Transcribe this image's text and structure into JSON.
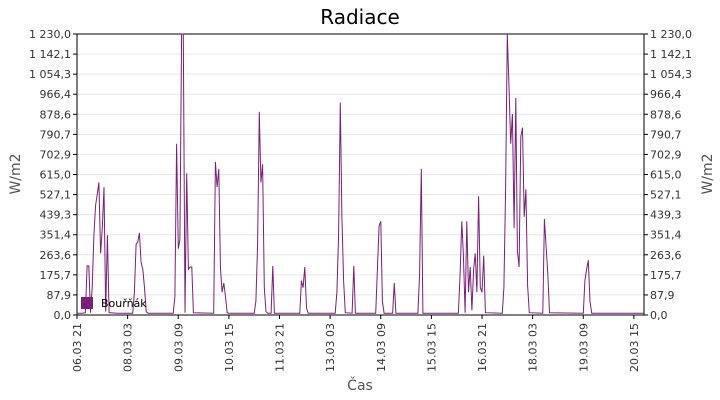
{
  "chart_data": {
    "type": "line",
    "title": "Radiace",
    "xlabel": "Čas",
    "ylabel": "W/m2",
    "ylim": [
      0,
      1230
    ],
    "y_ticks": [
      "0,0",
      "87,9",
      "175,7",
      "263,6",
      "351,4",
      "439,3",
      "527,1",
      "615,0",
      "702,9",
      "790,7",
      "878,6",
      "966,4",
      "1 054,3",
      "1 142,1",
      "1 230,0"
    ],
    "x_range": [
      "06.03 21",
      "20.03 21"
    ],
    "x_ticks": [
      "06.03 21",
      "08.03 03",
      "09.03 09",
      "10.03 15",
      "11.03 21",
      "13.03 03",
      "14.03 09",
      "15.03 15",
      "16.03 21",
      "18.03 03",
      "19.03 09",
      "20.03 15"
    ],
    "grid": true,
    "legend_position": "bottom-left",
    "colors": {
      "series": "#7a1f7a",
      "grid": "#e6e6e6",
      "axis": "#000000"
    },
    "series": [
      {
        "name": "Bouřňák",
        "points": [
          [
            "06.03 21",
            8
          ],
          [
            "07.03 00",
            8
          ],
          [
            "07.03 02",
            10
          ],
          [
            "07.03 03",
            215
          ],
          [
            "07.03 04",
            215
          ],
          [
            "07.03 05",
            10
          ],
          [
            "07.03 06",
            120
          ],
          [
            "07.03 07",
            350
          ],
          [
            "07.03 08",
            480
          ],
          [
            "07.03 09",
            530
          ],
          [
            "07.03 10",
            580
          ],
          [
            "07.03 11",
            270
          ],
          [
            "07.03 12",
            380
          ],
          [
            "07.03 13",
            560
          ],
          [
            "07.03 14",
            15
          ],
          [
            "07.03 15",
            350
          ],
          [
            "07.03 16",
            10
          ],
          [
            "07.03 17",
            10
          ],
          [
            "07.03 21",
            8
          ],
          [
            "08.03 06",
            8
          ],
          [
            "08.03 07",
            100
          ],
          [
            "08.03 08",
            310
          ],
          [
            "08.03 09",
            320
          ],
          [
            "08.03 10",
            360
          ],
          [
            "08.03 11",
            230
          ],
          [
            "08.03 12",
            200
          ],
          [
            "08.03 13",
            120
          ],
          [
            "08.03 14",
            15
          ],
          [
            "08.03 15",
            8
          ],
          [
            "09.03 06",
            8
          ],
          [
            "09.03 07",
            80
          ],
          [
            "09.03 08",
            750
          ],
          [
            "09.03 09",
            290
          ],
          [
            "09.03 10",
            330
          ],
          [
            "09.03 11",
            1230
          ],
          [
            "09.03 12",
            1230
          ],
          [
            "09.03 13",
            10
          ],
          [
            "09.03 14",
            620
          ],
          [
            "09.03 15",
            200
          ],
          [
            "09.03 16",
            210
          ],
          [
            "09.03 17",
            210
          ],
          [
            "09.03 18",
            10
          ],
          [
            "10.03 06",
            8
          ],
          [
            "10.03 07",
            670
          ],
          [
            "10.03 08",
            560
          ],
          [
            "10.03 09",
            640
          ],
          [
            "10.03 10",
            210
          ],
          [
            "10.03 11",
            100
          ],
          [
            "10.03 12",
            140
          ],
          [
            "10.03 13",
            80
          ],
          [
            "10.03 14",
            10
          ],
          [
            "10.03 15",
            8
          ],
          [
            "11.03 06",
            8
          ],
          [
            "11.03 07",
            60
          ],
          [
            "11.03 08",
            310
          ],
          [
            "11.03 09",
            890
          ],
          [
            "11.03 10",
            580
          ],
          [
            "11.03 11",
            660
          ],
          [
            "11.03 12",
            120
          ],
          [
            "11.03 13",
            15
          ],
          [
            "11.03 14",
            8
          ],
          [
            "11.03 16",
            8
          ],
          [
            "11.03 17",
            215
          ],
          [
            "11.03 18",
            8
          ],
          [
            "12.03 09",
            8
          ],
          [
            "12.03 10",
            150
          ],
          [
            "12.03 11",
            120
          ],
          [
            "12.03 12",
            210
          ],
          [
            "12.03 13",
            30
          ],
          [
            "12.03 14",
            8
          ],
          [
            "13.03 06",
            8
          ],
          [
            "13.03 07",
            100
          ],
          [
            "13.03 08",
            350
          ],
          [
            "13.03 09",
            930
          ],
          [
            "13.03 10",
            430
          ],
          [
            "13.03 11",
            150
          ],
          [
            "13.03 12",
            10
          ],
          [
            "13.03 16",
            8
          ],
          [
            "13.03 17",
            215
          ],
          [
            "13.03 18",
            8
          ],
          [
            "14.03 06",
            8
          ],
          [
            "14.03 07",
            200
          ],
          [
            "14.03 08",
            390
          ],
          [
            "14.03 09",
            410
          ],
          [
            "14.03 10",
            60
          ],
          [
            "14.03 11",
            8
          ],
          [
            "14.03 16",
            8
          ],
          [
            "14.03 17",
            140
          ],
          [
            "14.03 18",
            8
          ],
          [
            "15.03 07",
            8
          ],
          [
            "15.03 08",
            180
          ],
          [
            "15.03 09",
            640
          ],
          [
            "15.03 10",
            8
          ],
          [
            "16.03 07",
            8
          ],
          [
            "16.03 08",
            180
          ],
          [
            "16.03 09",
            410
          ],
          [
            "16.03 10",
            260
          ],
          [
            "16.03 11",
            10
          ],
          [
            "16.03 12",
            410
          ],
          [
            "16.03 13",
            100
          ],
          [
            "16.03 14",
            210
          ],
          [
            "16.03 15",
            20
          ],
          [
            "16.03 16",
            200
          ],
          [
            "16.03 17",
            270
          ],
          [
            "16.03 18",
            100
          ],
          [
            "16.03 19",
            520
          ],
          [
            "16.03 20",
            120
          ],
          [
            "16.03 21",
            100
          ],
          [
            "16.03 22",
            260
          ],
          [
            "16.03 23",
            10
          ],
          [
            "17.03 09",
            8
          ],
          [
            "17.03 10",
            120
          ],
          [
            "17.03 11",
            550
          ],
          [
            "17.03 12",
            1230
          ],
          [
            "17.03 13",
            1000
          ],
          [
            "17.03 14",
            750
          ],
          [
            "17.03 15",
            880
          ],
          [
            "17.03 16",
            380
          ],
          [
            "17.03 17",
            950
          ],
          [
            "17.03 18",
            280
          ],
          [
            "17.03 19",
            210
          ],
          [
            "17.03 20",
            780
          ],
          [
            "17.03 21",
            820
          ],
          [
            "17.03 22",
            430
          ],
          [
            "17.03 23",
            550
          ],
          [
            "18.03 00",
            130
          ],
          [
            "18.03 01",
            10
          ],
          [
            "18.03 09",
            8
          ],
          [
            "18.03 10",
            420
          ],
          [
            "18.03 11",
            300
          ],
          [
            "18.03 12",
            180
          ],
          [
            "18.03 13",
            10
          ],
          [
            "19.03 09",
            8
          ],
          [
            "19.03 10",
            150
          ],
          [
            "19.03 11",
            200
          ],
          [
            "19.03 12",
            240
          ],
          [
            "19.03 13",
            60
          ],
          [
            "19.03 14",
            8
          ],
          [
            "20.03 21",
            8
          ]
        ]
      }
    ]
  }
}
